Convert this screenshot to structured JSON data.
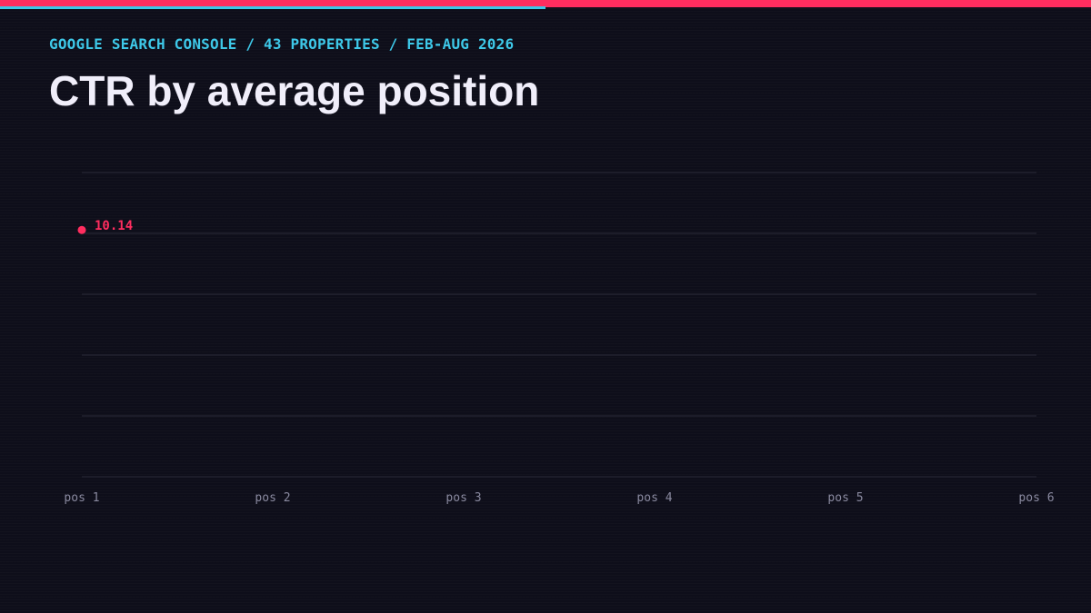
{
  "header": {
    "kicker": "GOOGLE SEARCH CONSOLE / 43 PROPERTIES / FEB-AUG 2026",
    "title": "CTR by average position"
  },
  "colors": {
    "background": "#0e0e1a",
    "accent_cyan": "#3ec8e8",
    "accent_pink": "#ff2d5f",
    "title_text": "#f0eefa",
    "axis_text": "#8a8aa0",
    "gridline": "#2a2a38"
  },
  "top_bar": {
    "progress": 0.5
  },
  "chart_data": {
    "type": "line",
    "title": "CTR by average position",
    "categories": [
      "pos 1",
      "pos 2",
      "pos 3",
      "pos 4",
      "pos 5",
      "pos 6"
    ],
    "series": [
      {
        "values": [
          10.14,
          null,
          null,
          null,
          null,
          null
        ],
        "labels": [
          "10.14",
          "",
          "",
          "",
          "",
          ""
        ]
      }
    ],
    "ylim": [
      0,
      12.5
    ],
    "yticks": [
      0,
      2.5,
      5,
      7.5,
      10,
      12.5
    ],
    "grid": true,
    "legend": "none",
    "xlabel": "",
    "ylabel": ""
  }
}
